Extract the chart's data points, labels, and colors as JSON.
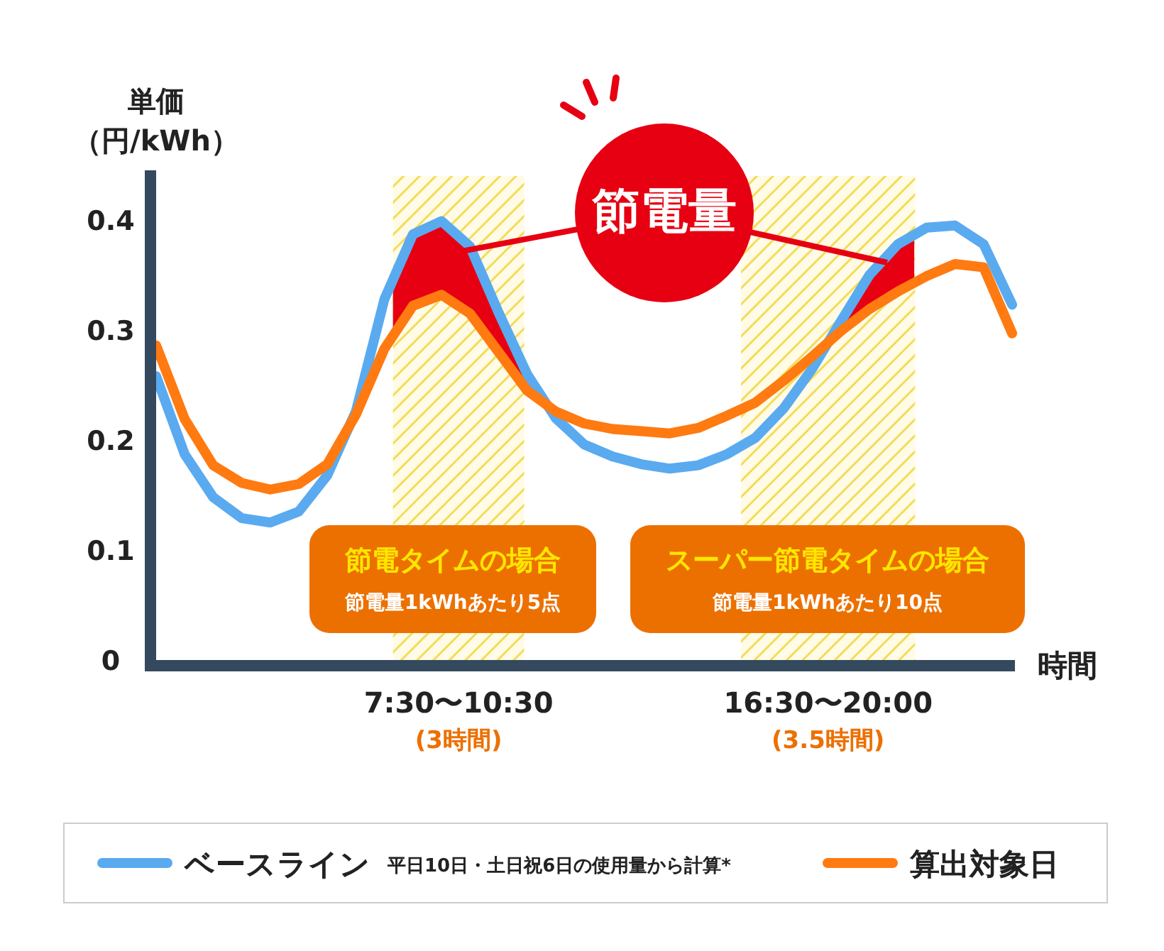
{
  "chart_data": {
    "type": "line",
    "ylabel": "単価（円/kWh）",
    "xlabel": "時間",
    "categories": [
      null,
      null,
      null,
      null,
      null,
      null,
      null,
      null,
      null,
      null,
      null,
      null,
      null,
      null,
      null,
      null,
      null,
      null,
      null,
      null,
      null,
      null,
      null,
      null,
      null,
      null,
      null,
      null,
      null,
      null,
      null
    ],
    "ylim": [
      0,
      0.44
    ],
    "yticks": [
      0,
      0.1,
      0.2,
      0.3,
      0.4
    ],
    "tick_labels": "y",
    "legend": "bottom",
    "annotations": [
      "節電量",
      "節電タイムの場合",
      "節電量1kWhあたり5点",
      "スーパー節電タイムの場合",
      "節電量1kWhあたり10点",
      "7:30〜10:30",
      "(3時間)",
      "16:30〜20:00",
      "(3.5時間)",
      "平日10日・土日祝6日の使用量から計算*"
    ],
    "series": [
      {
        "name": "ベースライン",
        "color": "#5aaaf0",
        "values": [
          0.258,
          0.187,
          0.148,
          0.129,
          0.125,
          0.135,
          0.168,
          0.226,
          0.328,
          0.387,
          0.399,
          0.376,
          0.316,
          0.26,
          0.22,
          0.196,
          0.185,
          0.178,
          0.174,
          0.177,
          0.187,
          0.202,
          0.229,
          0.265,
          0.308,
          0.35,
          0.378,
          0.393,
          0.395,
          0.378,
          0.323
        ]
      },
      {
        "name": "算出対象日",
        "color": "#ff7a10",
        "values": [
          0.286,
          0.219,
          0.177,
          0.161,
          0.155,
          0.16,
          0.178,
          0.223,
          0.283,
          0.322,
          0.332,
          0.315,
          0.28,
          0.245,
          0.226,
          0.215,
          0.21,
          0.208,
          0.206,
          0.211,
          0.222,
          0.234,
          0.254,
          0.276,
          0.299,
          0.319,
          0.335,
          0.349,
          0.36,
          0.357,
          0.297
        ]
      }
    ]
  }
}
